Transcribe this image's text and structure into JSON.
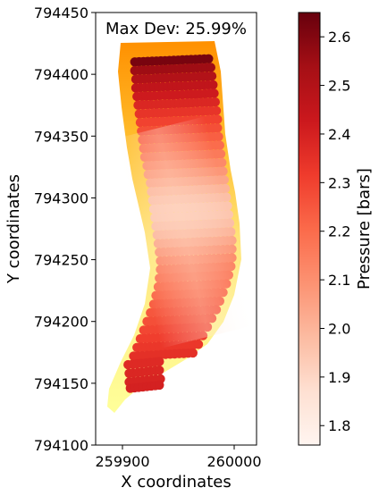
{
  "chart_data": {
    "type": "scatter",
    "annotation": "Max Dev: 25.99%",
    "xlabel": "X coordinates",
    "ylabel": "Y coordinates",
    "xlim": [
      259876,
      260020
    ],
    "ylim": [
      794100,
      794450
    ],
    "xticks": [
      259900,
      260000
    ],
    "xtick_labels": [
      "259900",
      "260000"
    ],
    "yticks": [
      794100,
      794150,
      794200,
      794250,
      794300,
      794350,
      794400,
      794450
    ],
    "ytick_labels": [
      "794100",
      "794150",
      "794200",
      "794250",
      "794300",
      "794350",
      "794400",
      "794450"
    ],
    "colorbar": {
      "label": "Pressure [bars]",
      "range": [
        1.76,
        2.65
      ],
      "ticks": [
        1.8,
        1.9,
        2.0,
        2.1,
        2.2,
        2.3,
        2.4,
        2.5,
        2.6
      ],
      "tick_labels": [
        "1.8",
        "1.9",
        "2.0",
        "2.1",
        "2.2",
        "2.3",
        "2.4",
        "2.5",
        "2.6"
      ],
      "colormap": [
        "#fff5eb",
        "#fdd0a2",
        "#fdae6b",
        "#fd8d3c",
        "#f16913",
        "#d94801",
        "#a63603",
        "#7f2704"
      ]
    },
    "reds_colormap": [
      "#fff5f0",
      "#fee0d2",
      "#fcbba1",
      "#fc9272",
      "#fb6a4a",
      "#ef3b2c",
      "#cb181d",
      "#a50f15",
      "#67000d"
    ],
    "background_field_colors": [
      "#ffff99",
      "#ffd24d",
      "#ff9900"
    ],
    "track_rows": [
      {
        "y": 794410,
        "x0": 259911,
        "x1": 259977,
        "p": 2.62
      },
      {
        "y": 794403,
        "x0": 259911,
        "x1": 259979,
        "p": 2.55
      },
      {
        "y": 794396,
        "x0": 259912,
        "x1": 259980,
        "p": 2.5
      },
      {
        "y": 794389,
        "x0": 259912,
        "x1": 259981,
        "p": 2.46
      },
      {
        "y": 794382,
        "x0": 259913,
        "x1": 259982,
        "p": 2.42
      },
      {
        "y": 794375,
        "x0": 259914,
        "x1": 259983,
        "p": 2.38
      },
      {
        "y": 794368,
        "x0": 259915,
        "x1": 259984,
        "p": 2.34
      },
      {
        "y": 794361,
        "x0": 259916,
        "x1": 259985,
        "p": 2.3
      },
      {
        "y": 794354,
        "x0": 259917,
        "x1": 259985,
        "p": 2.27
      },
      {
        "y": 794347,
        "x0": 259918,
        "x1": 259986,
        "p": 2.23
      },
      {
        "y": 794340,
        "x0": 259919,
        "x1": 259987,
        "p": 2.2
      },
      {
        "y": 794333,
        "x0": 259920,
        "x1": 259988,
        "p": 2.16
      },
      {
        "y": 794326,
        "x0": 259922,
        "x1": 259989,
        "p": 2.12
      },
      {
        "y": 794319,
        "x0": 259923,
        "x1": 259990,
        "p": 2.08
      },
      {
        "y": 794312,
        "x0": 259925,
        "x1": 259991,
        "p": 2.04
      },
      {
        "y": 794305,
        "x0": 259926,
        "x1": 259992,
        "p": 2.0
      },
      {
        "y": 794298,
        "x0": 259927,
        "x1": 259993,
        "p": 1.97
      },
      {
        "y": 794291,
        "x0": 259928,
        "x1": 259994,
        "p": 1.95
      },
      {
        "y": 794284,
        "x0": 259929,
        "x1": 259995,
        "p": 1.95
      },
      {
        "y": 794277,
        "x0": 259930,
        "x1": 259996,
        "p": 1.97
      },
      {
        "y": 794270,
        "x0": 259931,
        "x1": 259997,
        "p": 2.0
      },
      {
        "y": 794263,
        "x0": 259932,
        "x1": 259998,
        "p": 2.04
      },
      {
        "y": 794256,
        "x0": 259933,
        "x1": 259998,
        "p": 2.08
      },
      {
        "y": 794249,
        "x0": 259934,
        "x1": 259998,
        "p": 2.12
      },
      {
        "y": 794242,
        "x0": 259934,
        "x1": 259997,
        "p": 2.15
      },
      {
        "y": 794235,
        "x0": 259933,
        "x1": 259995,
        "p": 2.17
      },
      {
        "y": 794228,
        "x0": 259932,
        "x1": 259993,
        "p": 2.19
      },
      {
        "y": 794221,
        "x0": 259930,
        "x1": 259990,
        "p": 2.21
      },
      {
        "y": 794214,
        "x0": 259928,
        "x1": 259987,
        "p": 2.23
      },
      {
        "y": 794207,
        "x0": 259925,
        "x1": 259984,
        "p": 2.25
      },
      {
        "y": 794200,
        "x0": 259922,
        "x1": 259980,
        "p": 2.27
      },
      {
        "y": 794193,
        "x0": 259919,
        "x1": 259976,
        "p": 2.29
      },
      {
        "y": 794186,
        "x0": 259916,
        "x1": 259972,
        "p": 2.31
      },
      {
        "y": 794179,
        "x0": 259913,
        "x1": 259968,
        "p": 2.33
      },
      {
        "y": 794172,
        "x0": 259910,
        "x1": 259963,
        "p": 2.35
      },
      {
        "y": 794165,
        "x0": 259905,
        "x1": 259933,
        "p": 2.37
      },
      {
        "y": 794158,
        "x0": 259906,
        "x1": 259933,
        "p": 2.38
      },
      {
        "y": 794151,
        "x0": 259906,
        "x1": 259934,
        "p": 2.39
      },
      {
        "y": 794146,
        "x0": 259907,
        "x1": 259933,
        "p": 2.4
      }
    ]
  }
}
